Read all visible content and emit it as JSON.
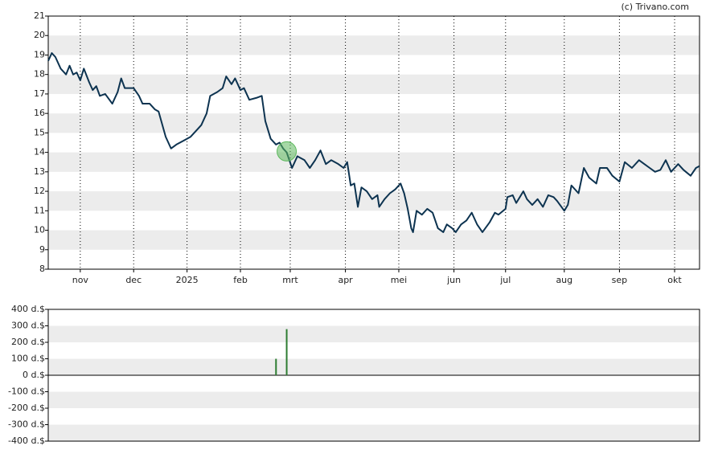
{
  "credit": "(c) Trivano.com",
  "chart_data": [
    {
      "type": "line",
      "x": [
        0,
        2,
        4,
        7,
        10,
        12,
        14,
        16,
        18,
        20,
        23,
        25,
        27,
        29,
        32,
        36,
        39,
        41,
        43,
        48,
        51,
        53,
        57,
        60,
        62,
        66,
        69,
        72,
        76,
        80,
        84,
        86,
        89,
        91,
        95,
        98,
        100,
        103,
        105,
        108,
        110,
        113,
        117,
        120,
        122,
        125,
        128,
        130,
        132,
        134,
        137,
        140,
        144,
        147,
        150,
        153,
        156,
        159,
        163,
        166,
        168,
        170,
        172,
        174,
        176,
        179,
        182,
        185,
        186,
        189,
        192,
        195,
        198,
        200,
        202,
        204,
        205,
        207,
        210,
        213,
        216,
        219,
        222,
        224,
        227,
        229,
        232,
        235,
        238,
        241,
        244,
        248,
        251,
        253,
        257,
        258,
        261,
        263,
        267,
        269,
        272,
        275,
        278,
        281,
        284,
        286,
        290,
        292,
        294,
        298,
        301,
        304,
        308,
        310,
        314,
        317,
        321,
        324,
        328,
        332,
        335,
        338,
        341,
        344,
        347,
        350,
        354,
        357,
        361,
        364,
        366
      ],
      "series": [
        {
          "color": "#0d3350",
          "values": [
            18.7,
            19.1,
            18.9,
            18.3,
            18.0,
            18.45,
            18.0,
            18.1,
            17.7,
            18.3,
            17.6,
            17.2,
            17.4,
            16.9,
            17.0,
            16.5,
            17.1,
            17.8,
            17.3,
            17.3,
            16.9,
            16.5,
            16.5,
            16.2,
            16.1,
            14.8,
            14.2,
            14.4,
            14.6,
            14.8,
            15.2,
            15.4,
            16.0,
            16.9,
            17.1,
            17.3,
            17.9,
            17.5,
            17.8,
            17.2,
            17.3,
            16.7,
            16.8,
            16.9,
            15.6,
            14.7,
            14.4,
            14.5,
            14.2,
            14.0,
            13.2,
            13.8,
            13.6,
            13.2,
            13.6,
            14.1,
            13.4,
            13.6,
            13.4,
            13.2,
            13.5,
            12.3,
            12.4,
            11.2,
            12.2,
            12.0,
            11.6,
            11.8,
            11.2,
            11.6,
            11.9,
            12.1,
            12.4,
            11.9,
            11.1,
            10.1,
            9.9,
            11.0,
            10.8,
            11.1,
            10.9,
            10.1,
            9.9,
            10.3,
            10.1,
            9.9,
            10.3,
            10.5,
            10.9,
            10.3,
            9.9,
            10.4,
            10.9,
            10.8,
            11.1,
            11.7,
            11.8,
            11.4,
            12.0,
            11.6,
            11.3,
            11.6,
            11.2,
            11.8,
            11.7,
            11.5,
            11.0,
            11.3,
            12.3,
            11.9,
            13.2,
            12.7,
            12.4,
            13.2,
            13.2,
            12.8,
            12.5,
            13.5,
            13.2,
            13.6,
            13.4,
            13.2,
            13.0,
            13.1,
            13.6,
            13.0,
            13.4,
            13.1,
            12.8,
            13.2,
            13.3
          ]
        }
      ],
      "highlight": {
        "x": 134,
        "y": 14.05,
        "color": "#5cb85c"
      },
      "xlim": [
        0,
        366
      ],
      "xticks": [
        {
          "value": 18,
          "label": "nov"
        },
        {
          "value": 48,
          "label": "dec"
        },
        {
          "value": 78,
          "label": "2025"
        },
        {
          "value": 108,
          "label": "feb"
        },
        {
          "value": 136,
          "label": "mrt"
        },
        {
          "value": 167,
          "label": "apr"
        },
        {
          "value": 197,
          "label": "mei"
        },
        {
          "value": 228,
          "label": "jun"
        },
        {
          "value": 257,
          "label": "jul"
        },
        {
          "value": 290,
          "label": "aug"
        },
        {
          "value": 321,
          "label": "sep"
        },
        {
          "value": 352,
          "label": "okt"
        }
      ],
      "ylim": [
        8,
        21
      ],
      "yticks": [
        8,
        9,
        10,
        11,
        12,
        13,
        14,
        15,
        16,
        17,
        18,
        19,
        20,
        21
      ],
      "grid": true
    },
    {
      "type": "bar",
      "x": [
        128,
        134
      ],
      "values": [
        100,
        280
      ],
      "color": "#2e7d32",
      "xlim": [
        0,
        366
      ],
      "ylim": [
        -400,
        400
      ],
      "yticks": [
        {
          "value": -400,
          "label": "-400 d.$"
        },
        {
          "value": -300,
          "label": "-300 d.$"
        },
        {
          "value": -200,
          "label": "-200 d.$"
        },
        {
          "value": -100,
          "label": "-100 d.$"
        },
        {
          "value": 0,
          "label": "0 d.$"
        },
        {
          "value": 100,
          "label": "100 d.$"
        },
        {
          "value": 200,
          "label": "200 d.$"
        },
        {
          "value": 300,
          "label": "300 d.$"
        },
        {
          "value": 400,
          "label": "400 d.$"
        }
      ],
      "grid": true
    }
  ]
}
